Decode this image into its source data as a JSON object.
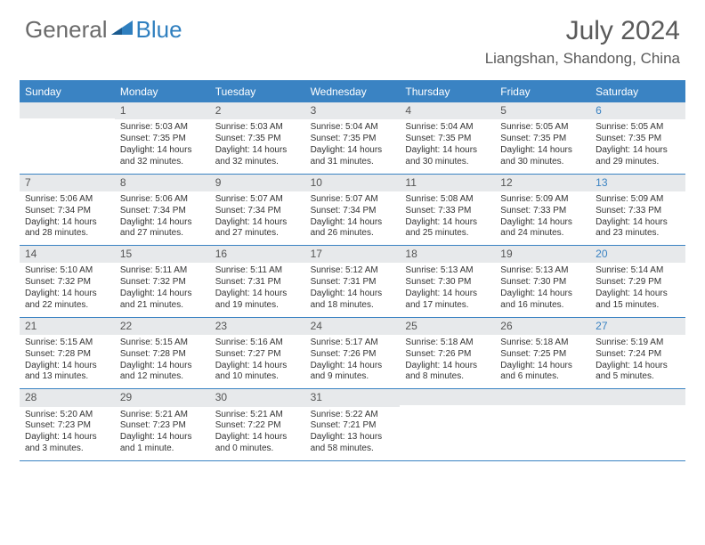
{
  "logo": {
    "general": "General",
    "blue": "Blue"
  },
  "title": "July 2024",
  "location": "Liangshan, Shandong, China",
  "dows": [
    "Sunday",
    "Monday",
    "Tuesday",
    "Wednesday",
    "Thursday",
    "Friday",
    "Saturday"
  ],
  "colors": {
    "brand": "#3a83c3",
    "text": "#5a5a5a",
    "bar": "#e7e9eb"
  },
  "weeks": [
    [
      {
        "n": "",
        "sr": "",
        "ss": "",
        "dl": ""
      },
      {
        "n": "1",
        "sr": "Sunrise: 5:03 AM",
        "ss": "Sunset: 7:35 PM",
        "dl": "Daylight: 14 hours and 32 minutes."
      },
      {
        "n": "2",
        "sr": "Sunrise: 5:03 AM",
        "ss": "Sunset: 7:35 PM",
        "dl": "Daylight: 14 hours and 32 minutes."
      },
      {
        "n": "3",
        "sr": "Sunrise: 5:04 AM",
        "ss": "Sunset: 7:35 PM",
        "dl": "Daylight: 14 hours and 31 minutes."
      },
      {
        "n": "4",
        "sr": "Sunrise: 5:04 AM",
        "ss": "Sunset: 7:35 PM",
        "dl": "Daylight: 14 hours and 30 minutes."
      },
      {
        "n": "5",
        "sr": "Sunrise: 5:05 AM",
        "ss": "Sunset: 7:35 PM",
        "dl": "Daylight: 14 hours and 30 minutes."
      },
      {
        "n": "6",
        "sr": "Sunrise: 5:05 AM",
        "ss": "Sunset: 7:35 PM",
        "dl": "Daylight: 14 hours and 29 minutes."
      }
    ],
    [
      {
        "n": "7",
        "sr": "Sunrise: 5:06 AM",
        "ss": "Sunset: 7:34 PM",
        "dl": "Daylight: 14 hours and 28 minutes."
      },
      {
        "n": "8",
        "sr": "Sunrise: 5:06 AM",
        "ss": "Sunset: 7:34 PM",
        "dl": "Daylight: 14 hours and 27 minutes."
      },
      {
        "n": "9",
        "sr": "Sunrise: 5:07 AM",
        "ss": "Sunset: 7:34 PM",
        "dl": "Daylight: 14 hours and 27 minutes."
      },
      {
        "n": "10",
        "sr": "Sunrise: 5:07 AM",
        "ss": "Sunset: 7:34 PM",
        "dl": "Daylight: 14 hours and 26 minutes."
      },
      {
        "n": "11",
        "sr": "Sunrise: 5:08 AM",
        "ss": "Sunset: 7:33 PM",
        "dl": "Daylight: 14 hours and 25 minutes."
      },
      {
        "n": "12",
        "sr": "Sunrise: 5:09 AM",
        "ss": "Sunset: 7:33 PM",
        "dl": "Daylight: 14 hours and 24 minutes."
      },
      {
        "n": "13",
        "sr": "Sunrise: 5:09 AM",
        "ss": "Sunset: 7:33 PM",
        "dl": "Daylight: 14 hours and 23 minutes."
      }
    ],
    [
      {
        "n": "14",
        "sr": "Sunrise: 5:10 AM",
        "ss": "Sunset: 7:32 PM",
        "dl": "Daylight: 14 hours and 22 minutes."
      },
      {
        "n": "15",
        "sr": "Sunrise: 5:11 AM",
        "ss": "Sunset: 7:32 PM",
        "dl": "Daylight: 14 hours and 21 minutes."
      },
      {
        "n": "16",
        "sr": "Sunrise: 5:11 AM",
        "ss": "Sunset: 7:31 PM",
        "dl": "Daylight: 14 hours and 19 minutes."
      },
      {
        "n": "17",
        "sr": "Sunrise: 5:12 AM",
        "ss": "Sunset: 7:31 PM",
        "dl": "Daylight: 14 hours and 18 minutes."
      },
      {
        "n": "18",
        "sr": "Sunrise: 5:13 AM",
        "ss": "Sunset: 7:30 PM",
        "dl": "Daylight: 14 hours and 17 minutes."
      },
      {
        "n": "19",
        "sr": "Sunrise: 5:13 AM",
        "ss": "Sunset: 7:30 PM",
        "dl": "Daylight: 14 hours and 16 minutes."
      },
      {
        "n": "20",
        "sr": "Sunrise: 5:14 AM",
        "ss": "Sunset: 7:29 PM",
        "dl": "Daylight: 14 hours and 15 minutes."
      }
    ],
    [
      {
        "n": "21",
        "sr": "Sunrise: 5:15 AM",
        "ss": "Sunset: 7:28 PM",
        "dl": "Daylight: 14 hours and 13 minutes."
      },
      {
        "n": "22",
        "sr": "Sunrise: 5:15 AM",
        "ss": "Sunset: 7:28 PM",
        "dl": "Daylight: 14 hours and 12 minutes."
      },
      {
        "n": "23",
        "sr": "Sunrise: 5:16 AM",
        "ss": "Sunset: 7:27 PM",
        "dl": "Daylight: 14 hours and 10 minutes."
      },
      {
        "n": "24",
        "sr": "Sunrise: 5:17 AM",
        "ss": "Sunset: 7:26 PM",
        "dl": "Daylight: 14 hours and 9 minutes."
      },
      {
        "n": "25",
        "sr": "Sunrise: 5:18 AM",
        "ss": "Sunset: 7:26 PM",
        "dl": "Daylight: 14 hours and 8 minutes."
      },
      {
        "n": "26",
        "sr": "Sunrise: 5:18 AM",
        "ss": "Sunset: 7:25 PM",
        "dl": "Daylight: 14 hours and 6 minutes."
      },
      {
        "n": "27",
        "sr": "Sunrise: 5:19 AM",
        "ss": "Sunset: 7:24 PM",
        "dl": "Daylight: 14 hours and 5 minutes."
      }
    ],
    [
      {
        "n": "28",
        "sr": "Sunrise: 5:20 AM",
        "ss": "Sunset: 7:23 PM",
        "dl": "Daylight: 14 hours and 3 minutes."
      },
      {
        "n": "29",
        "sr": "Sunrise: 5:21 AM",
        "ss": "Sunset: 7:23 PM",
        "dl": "Daylight: 14 hours and 1 minute."
      },
      {
        "n": "30",
        "sr": "Sunrise: 5:21 AM",
        "ss": "Sunset: 7:22 PM",
        "dl": "Daylight: 14 hours and 0 minutes."
      },
      {
        "n": "31",
        "sr": "Sunrise: 5:22 AM",
        "ss": "Sunset: 7:21 PM",
        "dl": "Daylight: 13 hours and 58 minutes."
      },
      {
        "n": "",
        "sr": "",
        "ss": "",
        "dl": ""
      },
      {
        "n": "",
        "sr": "",
        "ss": "",
        "dl": ""
      },
      {
        "n": "",
        "sr": "",
        "ss": "",
        "dl": ""
      }
    ]
  ]
}
